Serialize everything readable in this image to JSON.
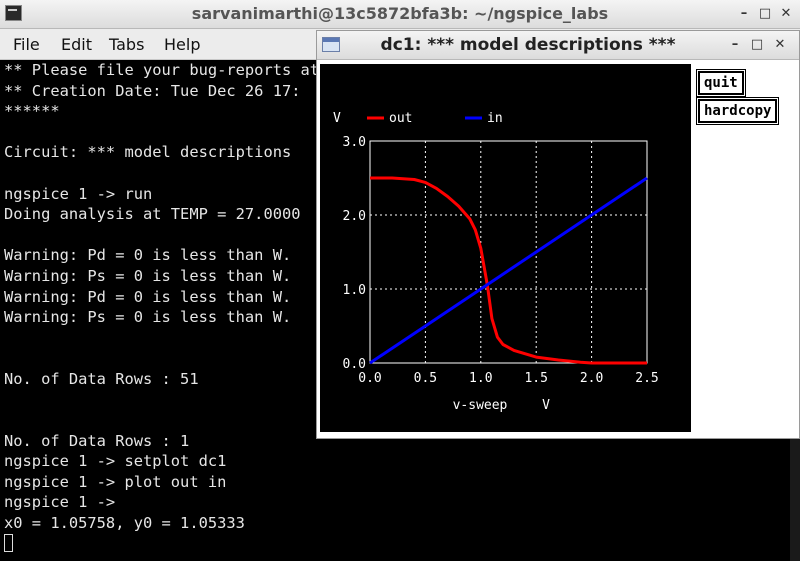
{
  "terminal": {
    "title": "sarvanimarthi@13c5872bfa3b: ~/ngspice_labs",
    "menu": [
      "File",
      "Edit",
      "Tabs",
      "Help"
    ],
    "lines": [
      "** Please file your bug-reports at http://ngspice.sourceforge.net/bugrep.html",
      "** Creation Date: Tue Dec 26 17:",
      "******",
      "",
      "Circuit: *** model descriptions",
      "",
      "ngspice 1 -> run",
      "Doing analysis at TEMP = 27.0000",
      "",
      "Warning: Pd = 0 is less than W.",
      "Warning: Ps = 0 is less than W.",
      "Warning: Pd = 0 is less than W.",
      "Warning: Ps = 0 is less than W.",
      "",
      "",
      "No. of Data Rows : 51",
      "",
      "",
      "No. of Data Rows : 1",
      "ngspice 1 -> setplot dc1",
      "ngspice 1 -> plot out in",
      "ngspice 1 ->",
      "x0 = 1.05758, y0 = 1.05333"
    ]
  },
  "plot_window": {
    "title": "dc1: *** model descriptions ***",
    "buttons": {
      "quit": "quit",
      "hardcopy": "hardcopy"
    }
  },
  "chart_data": {
    "type": "line",
    "ylabel": "V",
    "xlabel": "v-sweep",
    "xunit": "V",
    "xlim": [
      0,
      2.5
    ],
    "ylim": [
      0,
      3.0
    ],
    "x_ticks": [
      "0.0",
      "0.5",
      "1.0",
      "1.5",
      "2.0",
      "2.5"
    ],
    "y_ticks": [
      "0.0",
      "1.0",
      "2.0",
      "3.0"
    ],
    "grid": true,
    "legend_position": "top-left",
    "background": "#000000",
    "series": [
      {
        "name": "out",
        "color": "#ff0000",
        "x": [
          0,
          0.2,
          0.4,
          0.5,
          0.6,
          0.7,
          0.8,
          0.9,
          0.95,
          1.0,
          1.03,
          1.06,
          1.1,
          1.15,
          1.2,
          1.3,
          1.5,
          1.7,
          1.9,
          2.0,
          2.2,
          2.5
        ],
        "y": [
          2.5,
          2.5,
          2.48,
          2.44,
          2.36,
          2.25,
          2.12,
          1.95,
          1.8,
          1.55,
          1.3,
          1.05,
          0.6,
          0.35,
          0.25,
          0.17,
          0.08,
          0.04,
          0.01,
          0.0,
          0.0,
          0.0
        ]
      },
      {
        "name": "in",
        "color": "#0000ff",
        "x": [
          0,
          2.5
        ],
        "y": [
          0,
          2.5
        ]
      }
    ]
  }
}
